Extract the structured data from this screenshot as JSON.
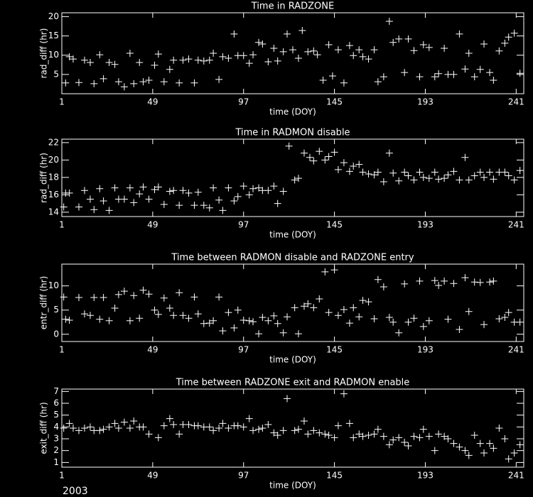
{
  "chart_data": [
    {
      "type": "scatter",
      "title": "Time in RADZONE",
      "xlabel": "time (DOY)",
      "ylabel": "rad_diff (hr)",
      "color": "#ffffff",
      "xlim": [
        1,
        245
      ],
      "ylim": [
        0,
        21
      ],
      "xticks": [
        1,
        49,
        97,
        145,
        193,
        241
      ],
      "yticks": [
        5,
        10,
        15,
        20
      ],
      "x": [
        3,
        5,
        7,
        10,
        13,
        16,
        18,
        21,
        23,
        26,
        29,
        31,
        34,
        37,
        39,
        42,
        44,
        47,
        50,
        52,
        55,
        58,
        60,
        63,
        65,
        68,
        71,
        73,
        76,
        79,
        81,
        84,
        86,
        89,
        92,
        94,
        97,
        100,
        102,
        105,
        107,
        110,
        113,
        115,
        118,
        120,
        123,
        126,
        128,
        131,
        134,
        136,
        139,
        142,
        144,
        147,
        150,
        153,
        155,
        158,
        160,
        163,
        166,
        168,
        171,
        174,
        176,
        179,
        182,
        184,
        187,
        190,
        192,
        195,
        198,
        200,
        203,
        205,
        208,
        211,
        214,
        216,
        219,
        222,
        224,
        227,
        229,
        232,
        235,
        237,
        240,
        243
      ],
      "values": [
        2.8,
        9.6,
        9.0,
        2.9,
        8.7,
        8.1,
        2.6,
        10.1,
        3.9,
        8.1,
        7.6,
        3.1,
        1.8,
        10.5,
        2.6,
        8.1,
        3.1,
        3.5,
        7.4,
        10.3,
        3.1,
        6.3,
        8.7,
        2.8,
        8.7,
        9.0,
        2.8,
        8.7,
        8.5,
        8.7,
        10.5,
        3.7,
        9.6,
        9.2,
        15.5,
        9.9,
        9.9,
        7.9,
        10.1,
        13.3,
        12.9,
        8.3,
        11.8,
        8.5,
        10.9,
        15.5,
        11.4,
        9.2,
        16.4,
        10.9,
        11.1,
        10.1,
        3.5,
        12.7,
        4.6,
        11.4,
        2.8,
        12.5,
        9.9,
        11.4,
        9.6,
        9.0,
        11.4,
        3.1,
        4.4,
        18.8,
        13.3,
        14.2,
        5.5,
        14.2,
        11.2,
        4.4,
        12.7,
        12.0,
        4.4,
        5.2,
        11.8,
        5.0,
        5.0,
        15.5,
        6.4,
        10.5,
        4.4,
        6.3,
        12.9,
        5.5,
        3.5,
        11.1,
        13.1,
        14.7,
        15.7,
        5.3
      ]
    },
    {
      "type": "scatter",
      "title": "Time in RADMON disable",
      "xlabel": "time (DOY)",
      "ylabel": "rad_diff (hr)",
      "color": "#ffffff",
      "xlim": [
        1,
        245
      ],
      "ylim": [
        13.5,
        22.4
      ],
      "xticks": [
        1,
        49,
        97,
        145,
        193,
        241
      ],
      "yticks": [
        14,
        16,
        18,
        20,
        22
      ],
      "x": [
        2,
        3,
        5,
        10,
        13,
        16,
        18,
        21,
        23,
        26,
        29,
        31,
        34,
        37,
        39,
        42,
        44,
        47,
        50,
        52,
        55,
        58,
        60,
        63,
        65,
        68,
        71,
        73,
        76,
        79,
        81,
        84,
        86,
        89,
        92,
        94,
        97,
        100,
        102,
        105,
        107,
        110,
        113,
        115,
        118,
        121,
        124,
        126,
        129,
        132,
        134,
        137,
        140,
        142,
        145,
        147,
        150,
        153,
        155,
        158,
        160,
        163,
        166,
        168,
        171,
        174,
        176,
        179,
        182,
        184,
        187,
        190,
        192,
        195,
        198,
        200,
        203,
        205,
        208,
        211,
        214,
        216,
        219,
        222,
        224,
        227,
        229,
        232,
        235,
        237,
        240,
        243
      ],
      "values": [
        14.6,
        16.2,
        16.2,
        14.6,
        16.5,
        15.5,
        14.3,
        16.7,
        15.3,
        14.2,
        16.8,
        15.5,
        15.5,
        16.8,
        15.1,
        16.1,
        16.9,
        15.5,
        16.6,
        16.9,
        14.9,
        16.4,
        16.5,
        14.8,
        16.5,
        16.2,
        14.8,
        16.3,
        14.8,
        14.5,
        16.8,
        15.4,
        14.2,
        16.8,
        15.3,
        15.8,
        17.0,
        16.0,
        16.7,
        16.8,
        16.5,
        16.5,
        17.0,
        15.0,
        16.4,
        21.6,
        17.7,
        17.9,
        20.8,
        20.3,
        19.9,
        21.0,
        20.0,
        20.4,
        20.9,
        18.9,
        19.7,
        18.7,
        19.3,
        19.5,
        18.6,
        18.4,
        18.3,
        18.6,
        17.5,
        20.8,
        18.5,
        17.6,
        18.6,
        18.2,
        17.7,
        18.6,
        18.0,
        17.9,
        18.6,
        17.8,
        17.9,
        18.3,
        18.7,
        17.7,
        20.3,
        17.7,
        18.2,
        18.6,
        18.0,
        18.6,
        17.8,
        18.6,
        18.6,
        18.2,
        17.7,
        18.8
      ]
    },
    {
      "type": "scatter",
      "title": "Time between RADMON disable and RADZONE entry",
      "xlabel": "time (DOY)",
      "ylabel": "entr_diff (hr)",
      "color": "#ffffff",
      "xlim": [
        1,
        245
      ],
      "ylim": [
        -1.5,
        14.5
      ],
      "xticks": [
        1,
        49,
        97,
        145,
        193,
        241
      ],
      "yticks": [
        0,
        5,
        10
      ],
      "x": [
        2,
        3,
        5,
        10,
        13,
        16,
        18,
        21,
        23,
        26,
        29,
        31,
        34,
        37,
        39,
        42,
        44,
        47,
        50,
        52,
        55,
        58,
        60,
        63,
        65,
        68,
        71,
        73,
        76,
        79,
        81,
        84,
        86,
        89,
        92,
        94,
        97,
        100,
        102,
        105,
        107,
        110,
        113,
        115,
        118,
        120,
        124,
        126,
        129,
        131,
        134,
        137,
        140,
        142,
        145,
        147,
        150,
        153,
        155,
        158,
        160,
        163,
        166,
        168,
        171,
        174,
        176,
        179,
        182,
        184,
        187,
        190,
        192,
        195,
        198,
        200,
        203,
        205,
        208,
        211,
        214,
        216,
        219,
        222,
        224,
        227,
        229,
        232,
        235,
        237,
        240,
        243
      ],
      "values": [
        7.7,
        3.1,
        2.9,
        7.6,
        4.2,
        3.9,
        7.6,
        3.1,
        7.6,
        2.8,
        5.4,
        8.2,
        8.9,
        2.8,
        8.0,
        3.3,
        9.1,
        8.3,
        5.0,
        4.1,
        7.5,
        5.4,
        3.9,
        8.6,
        3.9,
        3.3,
        7.7,
        4.2,
        2.2,
        2.3,
        2.8,
        7.7,
        0.7,
        4.5,
        1.3,
        5.0,
        2.9,
        2.8,
        2.6,
        0.1,
        3.5,
        2.8,
        3.8,
        2.2,
        0.3,
        3.6,
        5.5,
        0.1,
        5.8,
        6.3,
        5.5,
        7.3,
        12.9,
        4.5,
        13.3,
        3.9,
        5.1,
        2.3,
        5.5,
        3.6,
        7.0,
        6.7,
        3.2,
        11.3,
        9.8,
        3.5,
        2.5,
        0.3,
        10.4,
        2.5,
        3.3,
        11.0,
        1.6,
        2.8,
        11.1,
        10.1,
        11.0,
        3.1,
        10.5,
        1.0,
        11.7,
        4.7,
        10.8,
        10.7,
        2.0,
        10.8,
        11.0,
        3.2,
        3.5,
        4.5,
        2.5,
        2.5
      ]
    },
    {
      "type": "scatter",
      "title": "Time between RADZONE exit and RADMON enable",
      "xlabel": "time (DOY)",
      "ylabel": "exit_diff (hr)",
      "color": "#ffffff",
      "xlim": [
        1,
        245
      ],
      "ylim": [
        0.6,
        7.2
      ],
      "xticks": [
        1,
        49,
        97,
        145,
        193,
        241
      ],
      "yticks": [
        1,
        2,
        3,
        4,
        5,
        6,
        7
      ],
      "x": [
        2,
        5,
        7,
        10,
        13,
        16,
        18,
        21,
        23,
        26,
        29,
        31,
        34,
        37,
        39,
        42,
        44,
        47,
        52,
        55,
        58,
        60,
        63,
        65,
        68,
        71,
        73,
        76,
        79,
        81,
        84,
        86,
        89,
        92,
        94,
        97,
        100,
        102,
        105,
        107,
        110,
        113,
        115,
        118,
        120,
        124,
        126,
        129,
        131,
        134,
        137,
        140,
        142,
        145,
        147,
        150,
        153,
        155,
        158,
        160,
        163,
        166,
        168,
        171,
        174,
        176,
        179,
        182,
        184,
        187,
        190,
        192,
        195,
        198,
        200,
        203,
        205,
        208,
        211,
        214,
        216,
        219,
        222,
        224,
        227,
        229,
        232,
        235,
        237,
        240,
        243
      ],
      "values": [
        3.9,
        4.3,
        3.9,
        3.7,
        3.9,
        4.0,
        3.7,
        3.7,
        3.8,
        4.0,
        4.3,
        3.9,
        4.4,
        3.9,
        4.5,
        4.0,
        4.0,
        3.4,
        3.1,
        4.1,
        4.7,
        4.2,
        3.4,
        4.2,
        4.2,
        4.1,
        4.1,
        4.0,
        4.0,
        3.7,
        3.9,
        4.3,
        3.9,
        4.1,
        4.1,
        4.0,
        4.7,
        3.7,
        3.8,
        3.9,
        4.2,
        3.5,
        3.3,
        3.7,
        6.4,
        3.7,
        3.8,
        4.5,
        3.4,
        3.7,
        3.5,
        3.4,
        3.3,
        3.1,
        4.1,
        6.8,
        4.3,
        3.1,
        3.4,
        3.2,
        3.3,
        3.4,
        3.8,
        3.2,
        2.5,
        2.9,
        3.1,
        2.7,
        2.4,
        3.2,
        3.1,
        3.8,
        3.2,
        2.0,
        3.4,
        3.2,
        3.0,
        2.6,
        2.3,
        2.0,
        1.6,
        3.3,
        2.6,
        1.8,
        2.6,
        2.2,
        3.9,
        3.0,
        1.3,
        1.8,
        2.5
      ]
    }
  ],
  "annotation": "2003"
}
